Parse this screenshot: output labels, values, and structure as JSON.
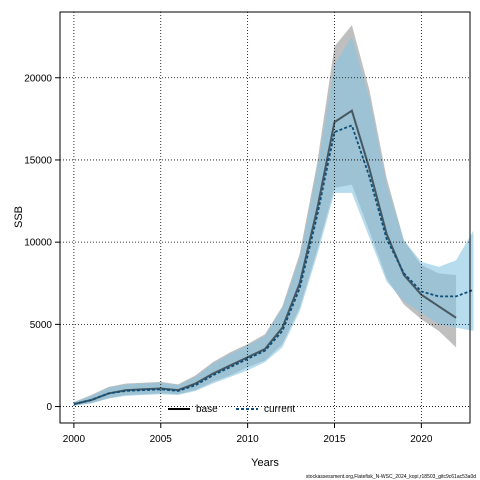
{
  "chart_data": {
    "type": "line",
    "xlabel": "Years",
    "ylabel": "SSB",
    "xlim": [
      1999.2,
      2022.8
    ],
    "ylim": [
      -1000,
      24000
    ],
    "xticks": [
      2000,
      2005,
      2010,
      2015,
      2020
    ],
    "yticks": [
      0,
      5000,
      10000,
      15000,
      20000
    ],
    "xtick_labels": [
      "2000",
      "2005",
      "2010",
      "2015",
      "2020"
    ],
    "ytick_labels": [
      "0",
      "5000",
      "10000",
      "15000",
      "20000"
    ],
    "grid": true,
    "legend_position": "bottom-center",
    "credit": "stockassessment.org,Flatefisk_N-WSC_2024_kopi,r18503_gitc9c61ac53a0d",
    "series": [
      {
        "name": "base",
        "color": "#000000",
        "band_color": "#a9a9a9",
        "x": [
          2000,
          2001,
          2002,
          2003,
          2004,
          2005,
          2006,
          2007,
          2008,
          2009,
          2010,
          2011,
          2012,
          2013,
          2014,
          2015,
          2016,
          2017,
          2018,
          2019,
          2020,
          2021,
          2022
        ],
        "values": [
          150,
          400,
          800,
          1000,
          1050,
          1100,
          1000,
          1400,
          2000,
          2500,
          3000,
          3500,
          4800,
          7500,
          12000,
          17300,
          18000,
          14500,
          10500,
          8000,
          6800,
          6100,
          5400
        ],
        "lower": [
          60,
          200,
          500,
          700,
          750,
          800,
          750,
          1000,
          1500,
          1900,
          2400,
          2800,
          3800,
          6000,
          9500,
          13300,
          13500,
          10700,
          7800,
          6200,
          5300,
          4600,
          3600
        ],
        "upper": [
          280,
          700,
          1200,
          1400,
          1450,
          1500,
          1350,
          1900,
          2700,
          3300,
          3800,
          4400,
          6100,
          9300,
          14800,
          21900,
          23200,
          19300,
          13900,
          10100,
          8600,
          8100,
          8000
        ]
      },
      {
        "name": "current",
        "color": "#0d4f7a",
        "band_color": "#87c5e3",
        "x": [
          2000,
          2001,
          2002,
          2003,
          2004,
          2005,
          2006,
          2007,
          2008,
          2009,
          2010,
          2011,
          2012,
          2013,
          2014,
          2015,
          2016,
          2017,
          2018,
          2019,
          2020,
          2021,
          2022,
          2023
        ],
        "values": [
          150,
          400,
          800,
          950,
          1000,
          1050,
          950,
          1300,
          1900,
          2400,
          2900,
          3400,
          4600,
          7200,
          11600,
          16700,
          17100,
          14000,
          10200,
          8100,
          7000,
          6700,
          6700,
          7100
        ],
        "lower": [
          60,
          200,
          500,
          650,
          700,
          750,
          700,
          950,
          1400,
          1800,
          2200,
          2700,
          3600,
          5800,
          9200,
          13000,
          13000,
          10300,
          7600,
          6400,
          5700,
          5000,
          4800,
          4600
        ],
        "upper": [
          260,
          650,
          1150,
          1350,
          1400,
          1450,
          1300,
          1800,
          2600,
          3200,
          3700,
          4300,
          6000,
          9000,
          14400,
          20800,
          22500,
          18800,
          13500,
          10100,
          8800,
          8500,
          8900,
          10700
        ]
      }
    ]
  }
}
